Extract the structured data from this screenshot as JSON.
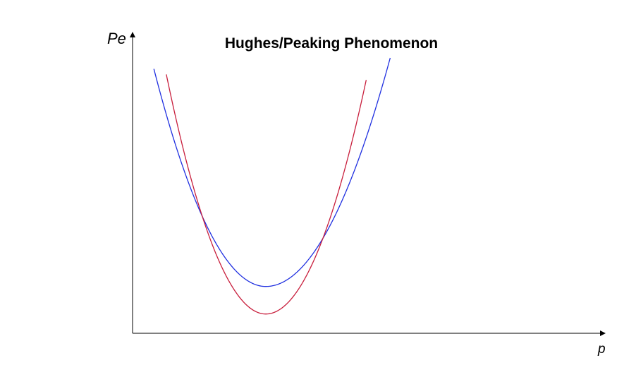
{
  "chart_data": {
    "type": "line",
    "title": "Hughes/Peaking Phenomenon",
    "xlabel": "p",
    "ylabel": "Pe",
    "xlim": [
      0,
      10
    ],
    "ylim": [
      0,
      10
    ],
    "grid": false,
    "legend": "none",
    "series": [
      {
        "color": "#2030e0",
        "vertex_x": 3.0,
        "vertex_y": 1.7,
        "x": [
          0.48,
          0.9,
          1.5,
          2.0,
          2.5,
          3.0,
          3.5,
          4.0,
          4.5,
          5.0,
          5.5,
          5.8
        ],
        "y": [
          9.6,
          7.2,
          4.5,
          2.95,
          2.0,
          1.7,
          2.0,
          2.95,
          4.55,
          6.9,
          9.7,
          10.0
        ]
      },
      {
        "color": "#c81e3c",
        "vertex_x": 3.0,
        "vertex_y": 0.7,
        "x": [
          0.76,
          1.1,
          1.5,
          2.0,
          2.5,
          3.0,
          3.5,
          4.0,
          4.5,
          5.0,
          5.26
        ],
        "y": [
          9.4,
          6.5,
          4.0,
          2.25,
          1.1,
          0.7,
          1.1,
          2.25,
          4.3,
          7.1,
          9.2
        ]
      }
    ],
    "colors": {
      "axis": "#000000",
      "blue": "#2030e0",
      "red": "#c81e3c"
    }
  }
}
